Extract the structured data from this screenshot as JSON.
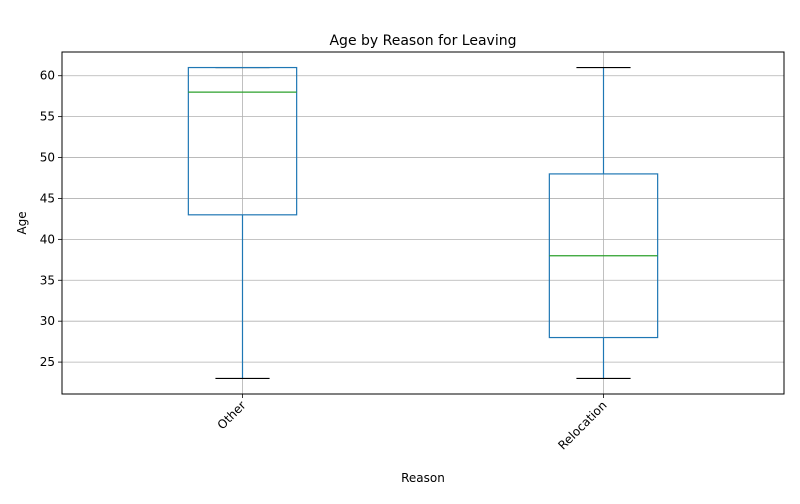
{
  "chart_data": {
    "type": "box",
    "title": "Age by Reason for Leaving",
    "xlabel": "Reason",
    "ylabel": "Age",
    "categories": [
      "Other",
      "Relocation"
    ],
    "boxes": [
      {
        "category": "Other",
        "whisker_low": 23,
        "q1": 43,
        "median": 58,
        "q3": 61,
        "whisker_high": 61
      },
      {
        "category": "Relocation",
        "whisker_low": 23,
        "q1": 28,
        "median": 38,
        "q3": 48,
        "whisker_high": 61
      }
    ],
    "ylim": [
      21.1,
      62.9
    ],
    "yticks": [
      25,
      30,
      35,
      40,
      45,
      50,
      55,
      60
    ],
    "grid": true,
    "xtick_rotation": 45,
    "colors": {
      "box": "#1f77b4",
      "median": "#2ca02c",
      "cap": "#000000",
      "grid": "#b0b0b0"
    }
  }
}
